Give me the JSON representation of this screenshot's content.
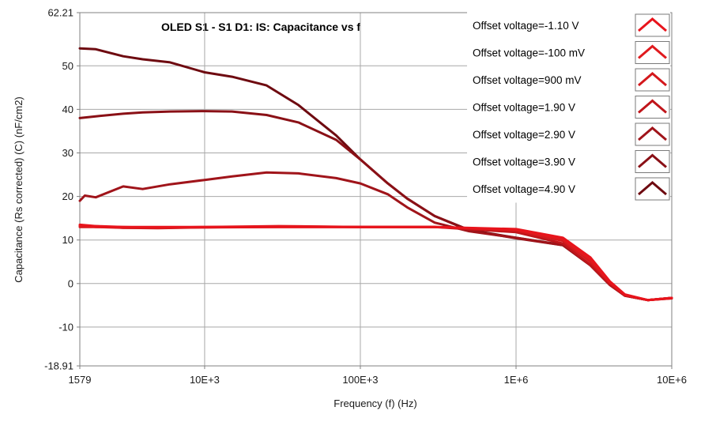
{
  "chart_data": {
    "type": "line",
    "title": "OLED S1 - S1 D1: IS: Capacitance vs f",
    "xlabel": "Frequency (f) (Hz)",
    "ylabel": "Capacitance (Rs corrected) (C) (nF/cm2)",
    "x_scale": "log",
    "xlim": [
      1579,
      10000000
    ],
    "ylim": [
      -18.91,
      62.21
    ],
    "x_ticks": [
      {
        "value": 1579,
        "label": "1579"
      },
      {
        "value": 10000,
        "label": "10E+3"
      },
      {
        "value": 100000,
        "label": "100E+3"
      },
      {
        "value": 1000000,
        "label": "1E+6"
      },
      {
        "value": 10000000,
        "label": "10E+6"
      }
    ],
    "y_ticks": [
      {
        "value": 62.21,
        "label": "62.21"
      },
      {
        "value": 50,
        "label": "50"
      },
      {
        "value": 40,
        "label": "40"
      },
      {
        "value": 30,
        "label": "30"
      },
      {
        "value": 20,
        "label": "20"
      },
      {
        "value": 10,
        "label": "10"
      },
      {
        "value": 0,
        "label": "0"
      },
      {
        "value": -10,
        "label": "-10"
      },
      {
        "value": -18.91,
        "label": "-18.91"
      }
    ],
    "grid": true,
    "legend_position": "top-right",
    "series": [
      {
        "name": "Offset voltage=-1.10 V",
        "color": "#e8141c",
        "x": [
          1579,
          2000,
          3000,
          5000,
          10000,
          30000,
          100000,
          300000,
          1000000,
          2000000,
          3000000,
          4000000,
          5000000,
          7000000,
          10000000
        ],
        "y": [
          13.5,
          13.2,
          13.0,
          13.0,
          13.0,
          13.0,
          13.0,
          13.0,
          12.5,
          10.5,
          6.0,
          0.5,
          -2.5,
          -3.8,
          -3.3
        ]
      },
      {
        "name": "Offset voltage=-100 mV",
        "color": "#e01a1e",
        "x": [
          1579,
          2000,
          3000,
          5000,
          10000,
          30000,
          100000,
          300000,
          1000000,
          2000000,
          3000000,
          4000000,
          5000000,
          7000000,
          10000000
        ],
        "y": [
          13.3,
          13.0,
          13.0,
          12.8,
          13.0,
          13.2,
          13.0,
          13.0,
          12.4,
          10.2,
          5.5,
          0.3,
          -2.6,
          -3.8,
          -3.3
        ]
      },
      {
        "name": "Offset voltage=900 mV",
        "color": "#d4181c",
        "x": [
          1579,
          2000,
          3000,
          5000,
          10000,
          30000,
          100000,
          300000,
          1000000,
          2000000,
          3000000,
          4000000,
          5000000,
          7000000,
          10000000
        ],
        "y": [
          13.0,
          13.0,
          12.8,
          12.8,
          12.9,
          13.1,
          13.0,
          13.0,
          12.2,
          9.8,
          5.0,
          0.2,
          -2.6,
          -3.8,
          -3.4
        ]
      },
      {
        "name": "Offset voltage=1.90 V",
        "color": "#c0151a",
        "x": [
          1579,
          2000,
          3000,
          5000,
          10000,
          30000,
          100000,
          300000,
          1000000,
          2000000,
          3000000,
          4000000,
          5000000,
          7000000,
          10000000
        ],
        "y": [
          13.2,
          13.2,
          12.8,
          12.7,
          12.9,
          13.0,
          13.0,
          13.0,
          11.8,
          9.2,
          4.3,
          -0.2,
          -2.8,
          -3.8,
          -3.4
        ]
      },
      {
        "name": "Offset voltage=2.90 V",
        "color": "#a0141a",
        "x": [
          1579,
          1700,
          2000,
          3000,
          4000,
          6000,
          10000,
          15000,
          25000,
          40000,
          70000,
          100000,
          150000,
          200000,
          300000,
          500000,
          1000000,
          2000000,
          3000000,
          4000000,
          5000000,
          7000000,
          10000000
        ],
        "y": [
          19.0,
          20.2,
          19.8,
          22.3,
          21.7,
          22.8,
          23.8,
          24.6,
          25.5,
          25.3,
          24.2,
          23.0,
          20.5,
          17.5,
          14.0,
          12.0,
          10.5,
          8.8,
          4.2,
          -0.3,
          -2.8,
          -3.8,
          -3.3
        ]
      },
      {
        "name": "Offset voltage=3.90 V",
        "color": "#8a1016",
        "x": [
          1579,
          2000,
          3000,
          4000,
          6000,
          10000,
          15000,
          25000,
          40000,
          70000,
          100000,
          150000,
          200000,
          300000,
          500000,
          1000000,
          2000000,
          3000000,
          4000000,
          5000000,
          7000000,
          10000000
        ],
        "y": [
          38.0,
          38.4,
          39.0,
          39.3,
          39.5,
          39.6,
          39.5,
          38.7,
          37.0,
          33.0,
          28.5,
          23.0,
          19.5,
          15.5,
          12.2,
          10.4,
          8.8,
          4.2,
          -0.3,
          -2.8,
          -3.8,
          -3.3
        ]
      },
      {
        "name": "Offset voltage=4.90 V",
        "color": "#6e0a10",
        "x": [
          1579,
          2000,
          3000,
          4000,
          6000,
          10000,
          15000,
          25000,
          40000,
          70000,
          100000,
          150000,
          200000,
          300000,
          500000,
          1000000,
          2000000,
          3000000,
          4000000,
          5000000,
          7000000,
          10000000
        ],
        "y": [
          54.0,
          53.8,
          52.2,
          51.5,
          50.8,
          48.5,
          47.5,
          45.5,
          41.0,
          34.0,
          28.5,
          23.0,
          19.5,
          15.5,
          12.3,
          10.5,
          8.9,
          4.3,
          -0.2,
          -2.8,
          -3.8,
          -3.3
        ]
      }
    ]
  }
}
